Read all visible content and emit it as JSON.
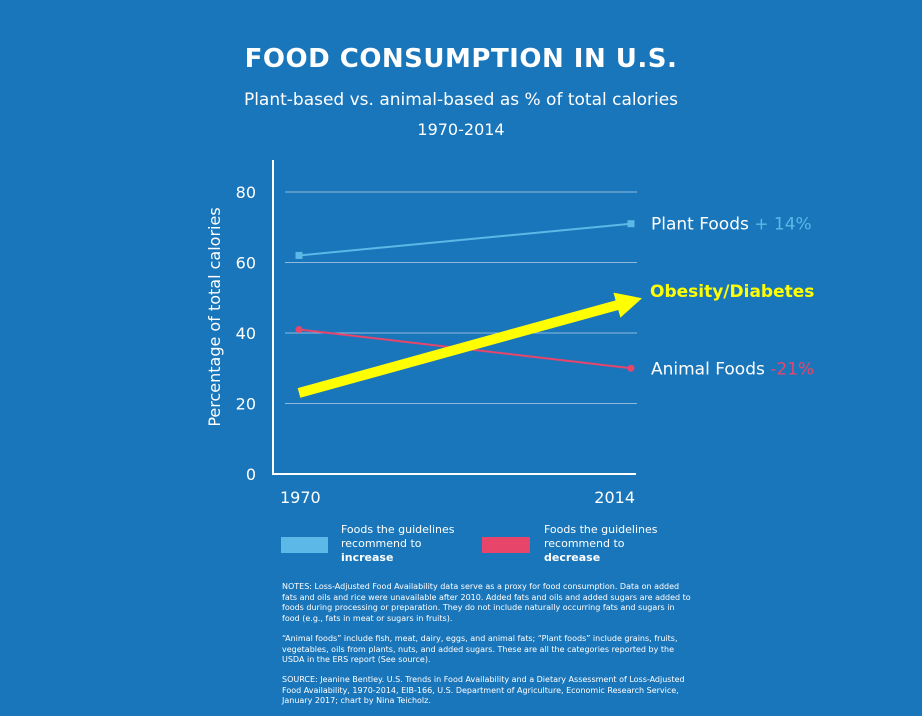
{
  "colors": {
    "background": "#1a76bb",
    "plant": "#5cb8e6",
    "animal": "#e8456b",
    "arrow": "#ffff00"
  },
  "chart_data": {
    "type": "line",
    "title": "FOOD CONSUMPTION IN U.S.",
    "subtitle": "Plant-based vs. animal-based as % of total calories",
    "period": "1970-2014",
    "ylabel": "Percentage of total calories",
    "ylim": [
      0,
      80
    ],
    "yticks": [
      "0",
      "20",
      "40",
      "60",
      "80"
    ],
    "x": [
      "1970",
      "2014"
    ],
    "grid": true,
    "series": [
      {
        "name": "Plant Foods",
        "change": "+ 14%",
        "values": [
          62,
          71
        ],
        "color": "#5cb8e6",
        "marker": "square"
      },
      {
        "name": "Animal Foods",
        "change": "-21%",
        "values": [
          41,
          30
        ],
        "color": "#e8456b",
        "marker": "circle"
      }
    ],
    "annotation": {
      "text": "Obesity/Diabetes",
      "color": "#ffff00",
      "shape": "arrow",
      "from": [
        "1970",
        23
      ],
      "to": [
        "2014",
        51
      ]
    },
    "legend": [
      {
        "line1": "Foods the guidelines",
        "line2": "recommend to",
        "line3": "increase",
        "color": "#5cb8e6"
      },
      {
        "line1": "Foods the guidelines",
        "line2": "recommend to",
        "line3": "decrease",
        "color": "#e8456b"
      }
    ]
  },
  "notes": [
    "NOTES:  Loss-Adjusted Food Availability data serve as a proxy for food consumption. Data on added fats and oils and rice were unavailable after 2010. Added fats and oils and added sugars are added to foods during processing or preparation. They do not include naturally occurring fats and sugars in food (e.g., fats in meat or sugars in fruits).",
    "“Animal foods” include fish, meat, dairy, eggs, and animal fats; “Plant foods” include grains, fruits, vegetables, oils from plants, nuts, and added sugars. These are all the categories reported by the USDA in the ERS report (See source).",
    "SOURCE: Jeanine Bentley. U.S. Trends in Food Availability and a Dietary Assessment of Loss-Adjusted Food Availability, 1970-2014, EIB-166, U.S. Department of Agriculture, Economic Research Service, January 2017; chart by Nina Teicholz."
  ]
}
